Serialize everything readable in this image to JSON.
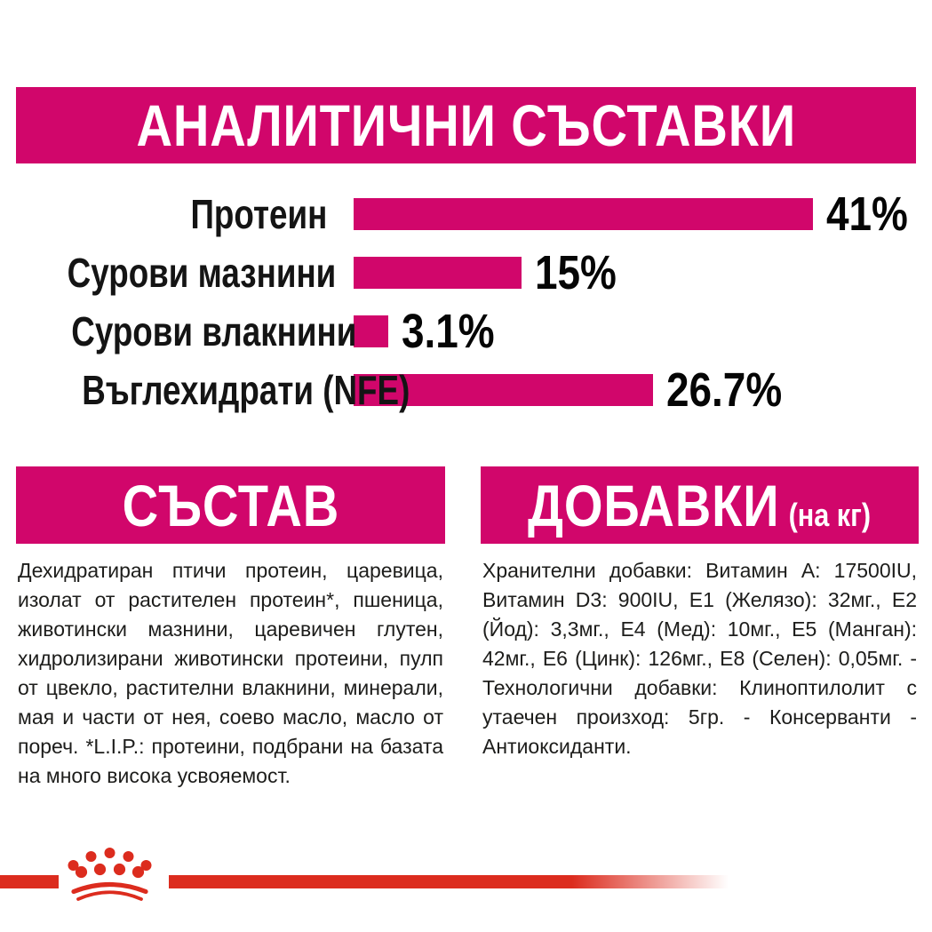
{
  "page": {
    "header": "АНАЛИТИЧНИ СЪСТАВКИ"
  },
  "chart_data": {
    "type": "bar",
    "orientation": "horizontal",
    "title": "АНАЛИТИЧНИ СЪСТАВКИ",
    "xlabel": "",
    "ylabel": "",
    "axis_max": 41,
    "grid": false,
    "legend": false,
    "bar_color": "#d1066b",
    "categories": [
      "Протеин",
      "Сурови мазнини",
      "Сурови влакнини",
      "Въглехидрати (NFE)"
    ],
    "values": [
      41,
      15,
      3.1,
      26.7
    ],
    "rows": [
      {
        "label": "Протеин",
        "value": 41,
        "display": "41%"
      },
      {
        "label": "Сурови мазнини",
        "value": 15,
        "display": "15%"
      },
      {
        "label": "Сурови влакнини",
        "value": 3.1,
        "display": "3.1%"
      },
      {
        "label": "Въглехидрати (NFE)",
        "value": 26.7,
        "display": "26.7%"
      }
    ]
  },
  "composition": {
    "title": "СЪСТАВ",
    "body": "Дехидратиран птичи протеин, царевица, изолат от растителен протеин*, пшеница, животински мазнини, царевичен глутен, хидролизирани животински протеини, пулп от цвекло, растителни влакнини, минерали, мая и части от нея, соево масло, масло от пореч. *L.I.P.: протеини, подбрани на базата на много висока усвояемост."
  },
  "additives": {
    "title": "ДОБАВКИ",
    "title_suffix": "(на кг)",
    "body": "Хранителни добавки: Витамин A: 17500IU, Витамин D3: 900IU, E1 (Желязо): 32мг., E2 (Йод): 3,3мг., E4 (Мед): 10мг., E5 (Манган): 42мг., E6 (Цинк): 126мг., E8 (Селен): 0,05мг. - Технологични добавки: Клиноптилолит с утаечен произход: 5гр. - Консерванти - Антиоксиданти."
  },
  "branding": {
    "logo": "royal-canin-crown",
    "accent_magenta": "#d1066b",
    "accent_red": "#dc2c1e"
  }
}
